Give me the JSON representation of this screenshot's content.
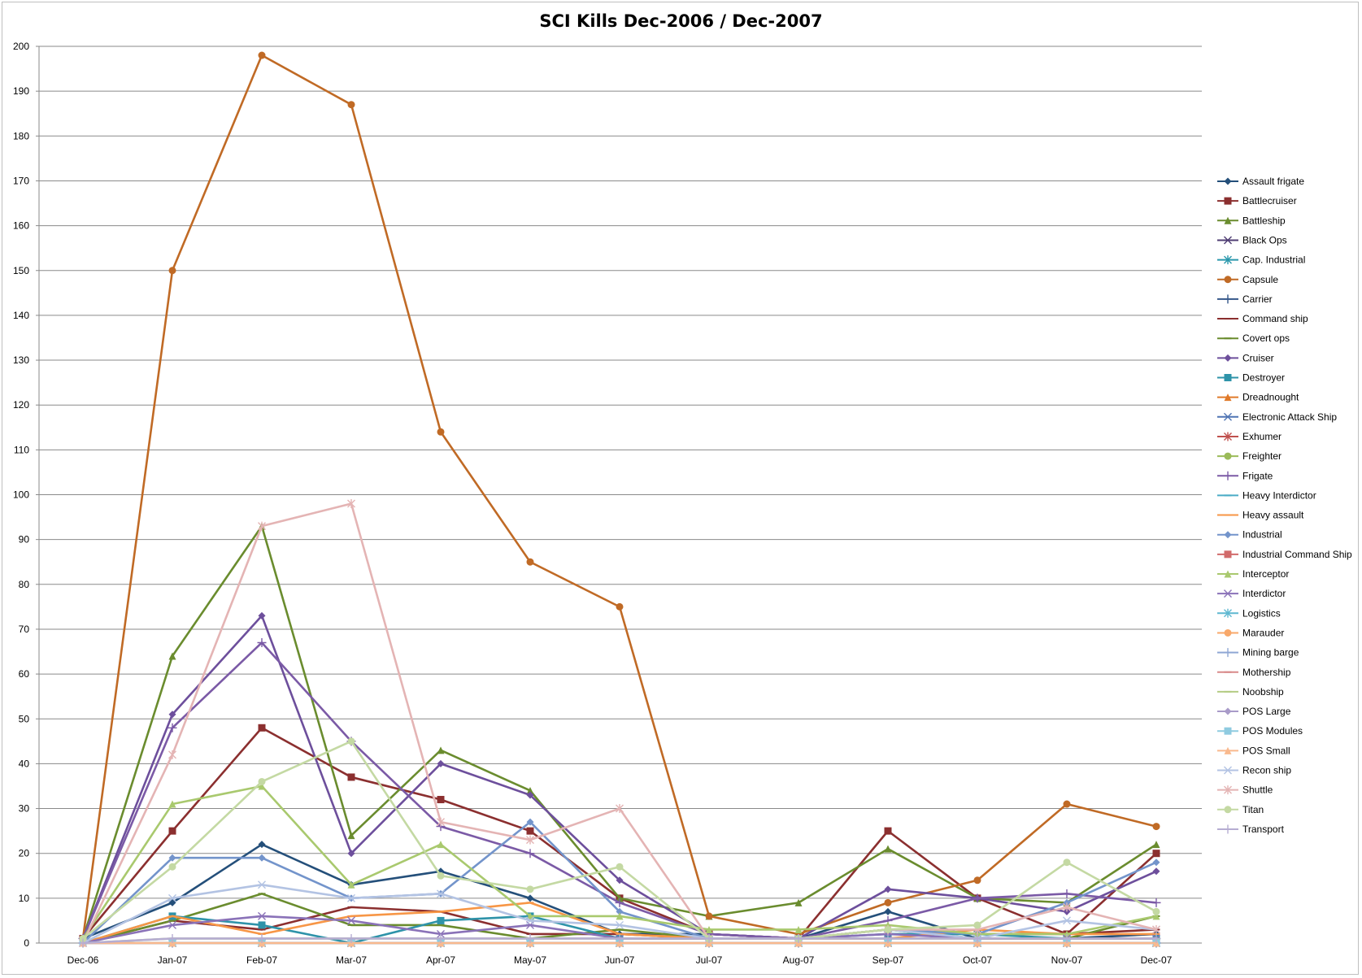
{
  "chart_data": {
    "type": "line",
    "title": "SCI Kills  Dec-2006 / Dec-2007",
    "xlabel": "",
    "ylabel": "",
    "ylim": [
      0,
      200
    ],
    "ytick_step": 10,
    "grid": "horizontal",
    "legend_position": "right",
    "categories": [
      "Dec-06",
      "Jan-07",
      "Feb-07",
      "Mar-07",
      "Apr-07",
      "May-07",
      "Jun-07",
      "Jul-07",
      "Aug-07",
      "Sep-07",
      "Oct-07",
      "Nov-07",
      "Dec-07"
    ],
    "series": [
      {
        "name": "Assault frigate",
        "color": "#244f7a",
        "marker": "diamond",
        "values": [
          1,
          9,
          22,
          13,
          16,
          10,
          2,
          2,
          1,
          7,
          1,
          1,
          2
        ]
      },
      {
        "name": "Battlecruiser",
        "color": "#8b2f2f",
        "marker": "square",
        "values": [
          1,
          25,
          48,
          37,
          32,
          25,
          10,
          2,
          1,
          25,
          10,
          2,
          20
        ]
      },
      {
        "name": "Battleship",
        "color": "#6a8c2e",
        "marker": "triangle",
        "values": [
          1,
          64,
          93,
          24,
          43,
          34,
          10,
          6,
          9,
          21,
          10,
          9,
          22
        ]
      },
      {
        "name": "Black Ops",
        "color": "#4f3d73",
        "marker": "x",
        "values": [
          0,
          0,
          0,
          0,
          0,
          0,
          0,
          0,
          0,
          0,
          0,
          0,
          0
        ]
      },
      {
        "name": "Cap. Industrial",
        "color": "#2a98ac",
        "marker": "star",
        "values": [
          0,
          0,
          0,
          0,
          0,
          0,
          0,
          0,
          0,
          0,
          0,
          0,
          0
        ]
      },
      {
        "name": "Capsule",
        "color": "#c06a25",
        "marker": "circle",
        "values": [
          1,
          150,
          198,
          187,
          114,
          85,
          75,
          6,
          2,
          9,
          14,
          31,
          26
        ]
      },
      {
        "name": "Carrier",
        "color": "#36588a",
        "marker": "plus",
        "values": [
          0,
          0,
          0,
          0,
          0,
          0,
          0,
          0,
          0,
          0,
          0,
          0,
          0
        ]
      },
      {
        "name": "Command ship",
        "color": "#8b2f2f",
        "marker": "dash",
        "values": [
          0,
          5,
          3,
          8,
          7,
          2,
          2,
          1,
          1,
          3,
          2,
          2,
          3
        ]
      },
      {
        "name": "Covert ops",
        "color": "#6a8c2e",
        "marker": "dash",
        "values": [
          0,
          5,
          11,
          4,
          4,
          1,
          3,
          1,
          1,
          3,
          1,
          1,
          6
        ]
      },
      {
        "name": "Cruiser",
        "color": "#6d4f9c",
        "marker": "diamond",
        "values": [
          1,
          51,
          73,
          20,
          40,
          33,
          14,
          2,
          1,
          12,
          10,
          7,
          16
        ]
      },
      {
        "name": "Destroyer",
        "color": "#2e93a9",
        "marker": "square",
        "values": [
          0,
          6,
          4,
          0,
          5,
          6,
          1,
          1,
          1,
          2,
          2,
          1,
          1
        ]
      },
      {
        "name": "Dreadnought",
        "color": "#e07a2a",
        "marker": "triangle",
        "values": [
          0,
          0,
          0,
          0,
          0,
          0,
          0,
          0,
          0,
          0,
          0,
          0,
          0
        ]
      },
      {
        "name": "Electronic Attack Ship",
        "color": "#4f74b3",
        "marker": "x",
        "values": [
          0,
          0,
          0,
          0,
          0,
          0,
          0,
          0,
          0,
          0,
          0,
          0,
          0
        ]
      },
      {
        "name": "Exhumer",
        "color": "#c0504d",
        "marker": "star",
        "values": [
          0,
          0,
          0,
          0,
          0,
          0,
          0,
          0,
          0,
          0,
          0,
          0,
          0
        ]
      },
      {
        "name": "Freighter",
        "color": "#9bbb59",
        "marker": "circle",
        "values": [
          0,
          0,
          0,
          0,
          0,
          0,
          0,
          0,
          0,
          0,
          0,
          0,
          0
        ]
      },
      {
        "name": "Frigate",
        "color": "#7b5aa6",
        "marker": "plus",
        "values": [
          1,
          48,
          67,
          45,
          26,
          20,
          9,
          2,
          1,
          5,
          10,
          11,
          9
        ]
      },
      {
        "name": "Heavy Interdictor",
        "color": "#4bacc6",
        "marker": "dash",
        "values": [
          0,
          0,
          0,
          0,
          0,
          0,
          0,
          0,
          0,
          0,
          0,
          0,
          0
        ]
      },
      {
        "name": "Heavy assault",
        "color": "#f79646",
        "marker": "dash",
        "values": [
          0,
          6,
          2,
          6,
          7,
          9,
          2,
          1,
          1,
          1,
          3,
          2,
          2
        ]
      },
      {
        "name": "Industrial",
        "color": "#7394cb",
        "marker": "diamond",
        "values": [
          0,
          19,
          19,
          10,
          11,
          27,
          7,
          1,
          1,
          3,
          2,
          9,
          18
        ]
      },
      {
        "name": "Industrial Command Ship",
        "color": "#d16b6b",
        "marker": "square",
        "values": [
          0,
          0,
          0,
          0,
          0,
          0,
          0,
          0,
          0,
          0,
          0,
          0,
          0
        ]
      },
      {
        "name": "Interceptor",
        "color": "#a9c96e",
        "marker": "triangle",
        "values": [
          1,
          31,
          35,
          13,
          22,
          6,
          6,
          3,
          3,
          4,
          2,
          2,
          6
        ]
      },
      {
        "name": "Interdictor",
        "color": "#8a72b8",
        "marker": "x",
        "values": [
          0,
          4,
          6,
          5,
          2,
          4,
          1,
          1,
          1,
          2,
          1,
          1,
          1
        ]
      },
      {
        "name": "Logistics",
        "color": "#5fb8d0",
        "marker": "star",
        "values": [
          0,
          0,
          0,
          0,
          0,
          0,
          0,
          0,
          0,
          0,
          0,
          0,
          0
        ]
      },
      {
        "name": "Marauder",
        "color": "#f8a86a",
        "marker": "circle",
        "values": [
          0,
          0,
          0,
          0,
          0,
          0,
          0,
          0,
          0,
          0,
          0,
          0,
          0
        ]
      },
      {
        "name": "Mining barge",
        "color": "#8fa7d4",
        "marker": "plus",
        "values": [
          0,
          0,
          0,
          0,
          0,
          0,
          0,
          0,
          0,
          0,
          0,
          0,
          0
        ]
      },
      {
        "name": "Mothership",
        "color": "#d88a8a",
        "marker": "dash",
        "values": [
          0,
          0,
          0,
          0,
          0,
          0,
          0,
          0,
          0,
          0,
          0,
          0,
          0
        ]
      },
      {
        "name": "Noobship",
        "color": "#b4cc84",
        "marker": "dash",
        "values": [
          0,
          1,
          1,
          1,
          1,
          1,
          1,
          1,
          1,
          1,
          1,
          1,
          1
        ]
      },
      {
        "name": "POS Large",
        "color": "#a99bc9",
        "marker": "diamond",
        "values": [
          0,
          0,
          0,
          0,
          0,
          0,
          0,
          0,
          0,
          0,
          0,
          0,
          0
        ]
      },
      {
        "name": "POS Modules",
        "color": "#8fcbe0",
        "marker": "square",
        "values": [
          0,
          0,
          0,
          0,
          0,
          0,
          0,
          0,
          0,
          0,
          0,
          0,
          0
        ]
      },
      {
        "name": "POS Small",
        "color": "#f9b98e",
        "marker": "triangle",
        "values": [
          0,
          0,
          0,
          0,
          0,
          0,
          0,
          0,
          0,
          0,
          0,
          0,
          0
        ]
      },
      {
        "name": "Recon ship",
        "color": "#b3c3e3",
        "marker": "x",
        "values": [
          0,
          10,
          13,
          10,
          11,
          5,
          4,
          1,
          1,
          3,
          1,
          5,
          3
        ]
      },
      {
        "name": "Shuttle",
        "color": "#e4b4b4",
        "marker": "star",
        "values": [
          0,
          42,
          93,
          98,
          27,
          23,
          30,
          1,
          1,
          3,
          3,
          8,
          3
        ]
      },
      {
        "name": "Titan",
        "color": "#c4d9a3",
        "marker": "circle",
        "values": [
          1,
          17,
          36,
          45,
          15,
          12,
          17,
          1,
          1,
          3,
          4,
          18,
          7
        ]
      },
      {
        "name": "Transport",
        "color": "#b6add2",
        "marker": "plus",
        "values": [
          0,
          1,
          1,
          1,
          1,
          1,
          1,
          1,
          1,
          1,
          1,
          1,
          1
        ]
      }
    ]
  }
}
